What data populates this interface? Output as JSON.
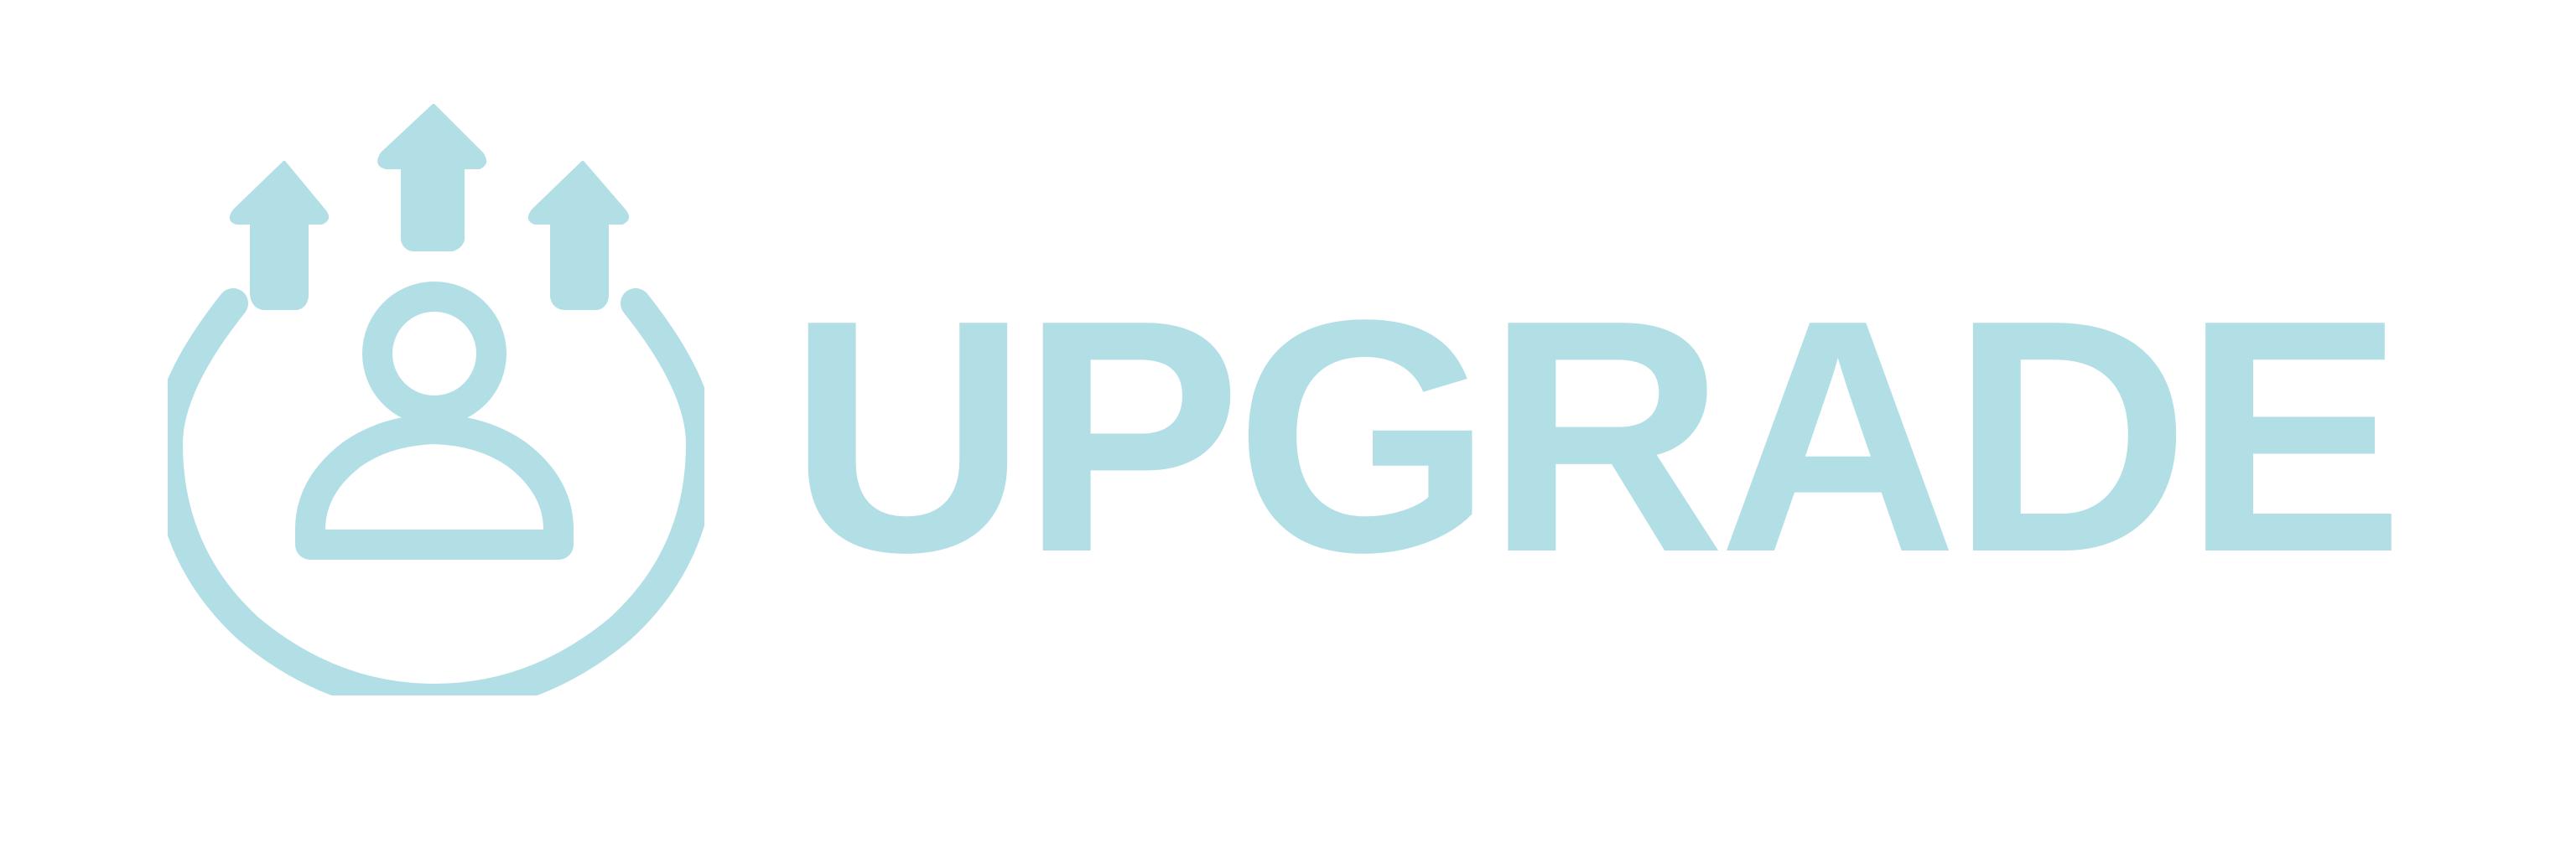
{
  "brand": {
    "wordmark": "UPGRADE",
    "icon": "user-upgrade-icon",
    "color": "#b2dfe6",
    "background": "#ffffff"
  }
}
